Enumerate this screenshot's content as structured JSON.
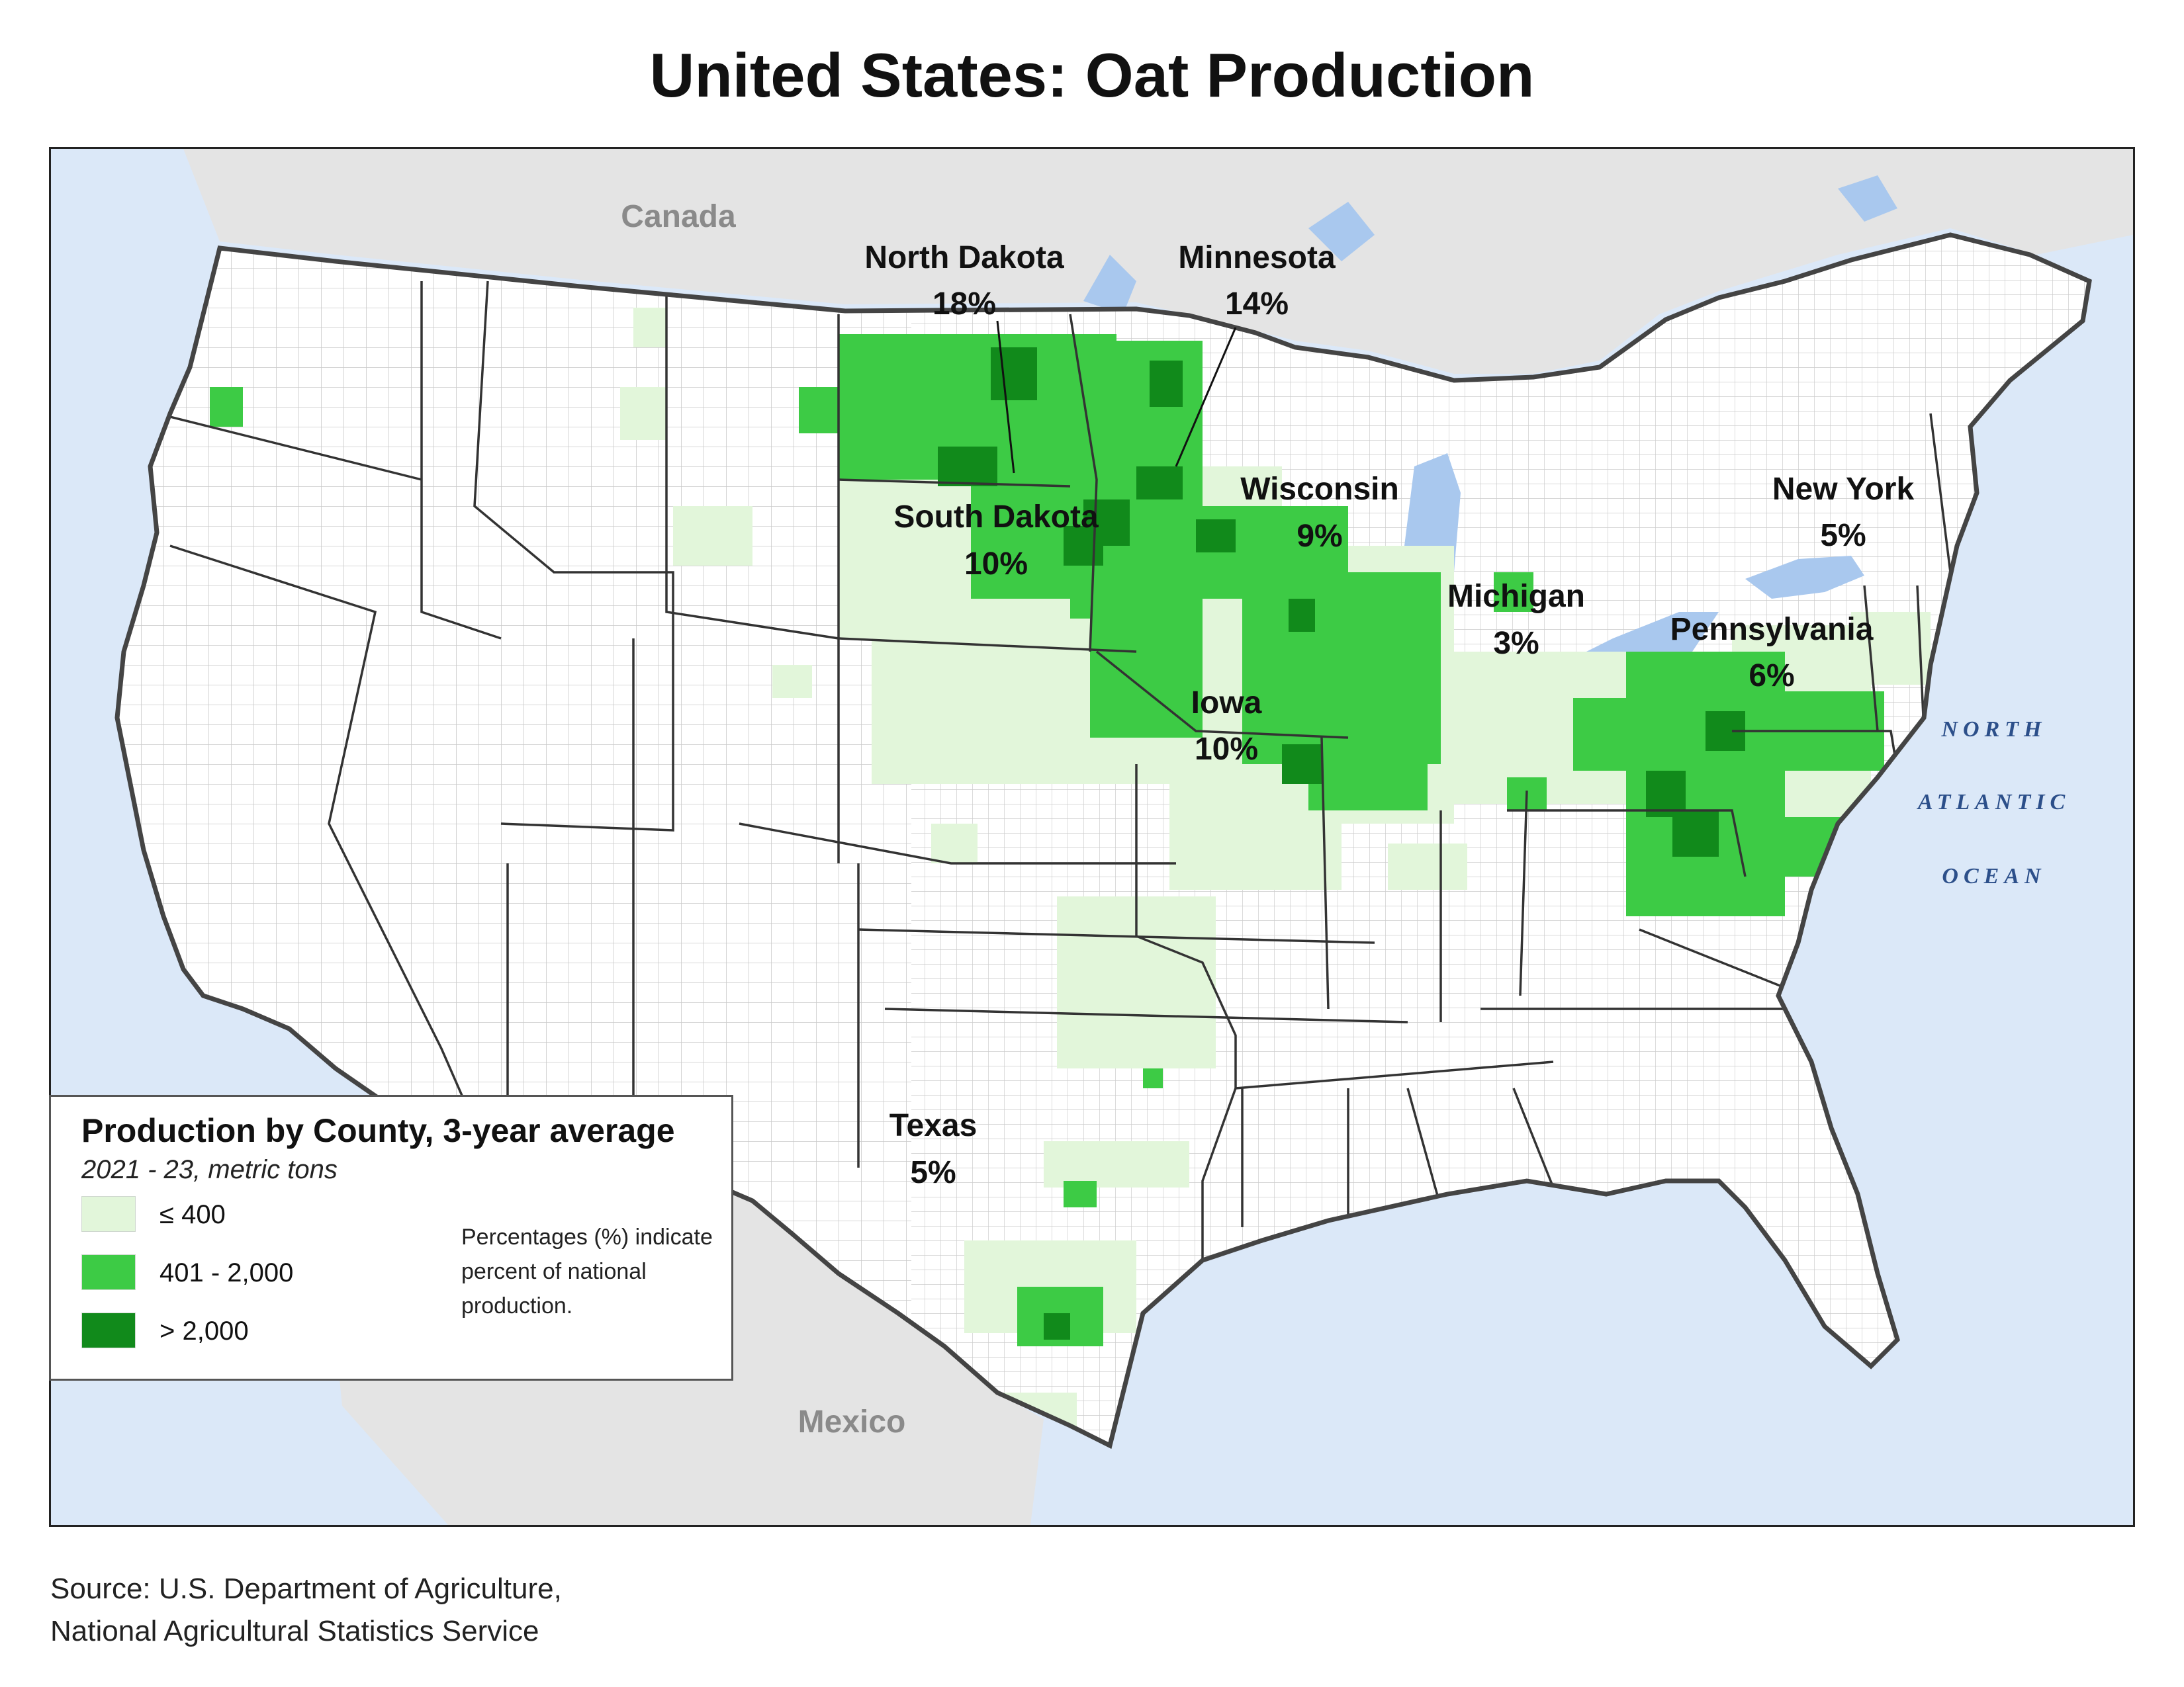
{
  "title": "United States: Oat Production",
  "labels": {
    "canada": "Canada",
    "mexico": "Mexico",
    "ocean_line1": "NORTH",
    "ocean_line2": "ATLANTIC",
    "ocean_line3": "OCEAN"
  },
  "states": [
    {
      "name": "North Dakota",
      "pct": "18%"
    },
    {
      "name": "Minnesota",
      "pct": "14%"
    },
    {
      "name": "South Dakota",
      "pct": "10%"
    },
    {
      "name": "Wisconsin",
      "pct": "9%"
    },
    {
      "name": "Iowa",
      "pct": "10%"
    },
    {
      "name": "Michigan",
      "pct": "3%"
    },
    {
      "name": "New York",
      "pct": "5%"
    },
    {
      "name": "Pennsylvania",
      "pct": "6%"
    },
    {
      "name": "Texas",
      "pct": "5%"
    }
  ],
  "legend": {
    "title": "Production by County, 3-year average",
    "subtitle": "2021 - 23, metric tons",
    "classes": [
      {
        "label": "≤ 400",
        "color": "#e2f6da"
      },
      {
        "label": "401 - 2,000",
        "color": "#3dcb45"
      },
      {
        "label": "> 2,000",
        "color": "#118a1b"
      }
    ],
    "note": "Percentages (%) indicate percent of national production."
  },
  "colors": {
    "water": "#dbe8f8",
    "foreign_land": "#e4e4e4",
    "us_land": "#ffffff",
    "lakes": "#a9c8ee",
    "borders": "#444444"
  },
  "source": {
    "line1": "Source: U.S. Department of Agriculture,",
    "line2": "National Agricultural Statistics Service"
  }
}
